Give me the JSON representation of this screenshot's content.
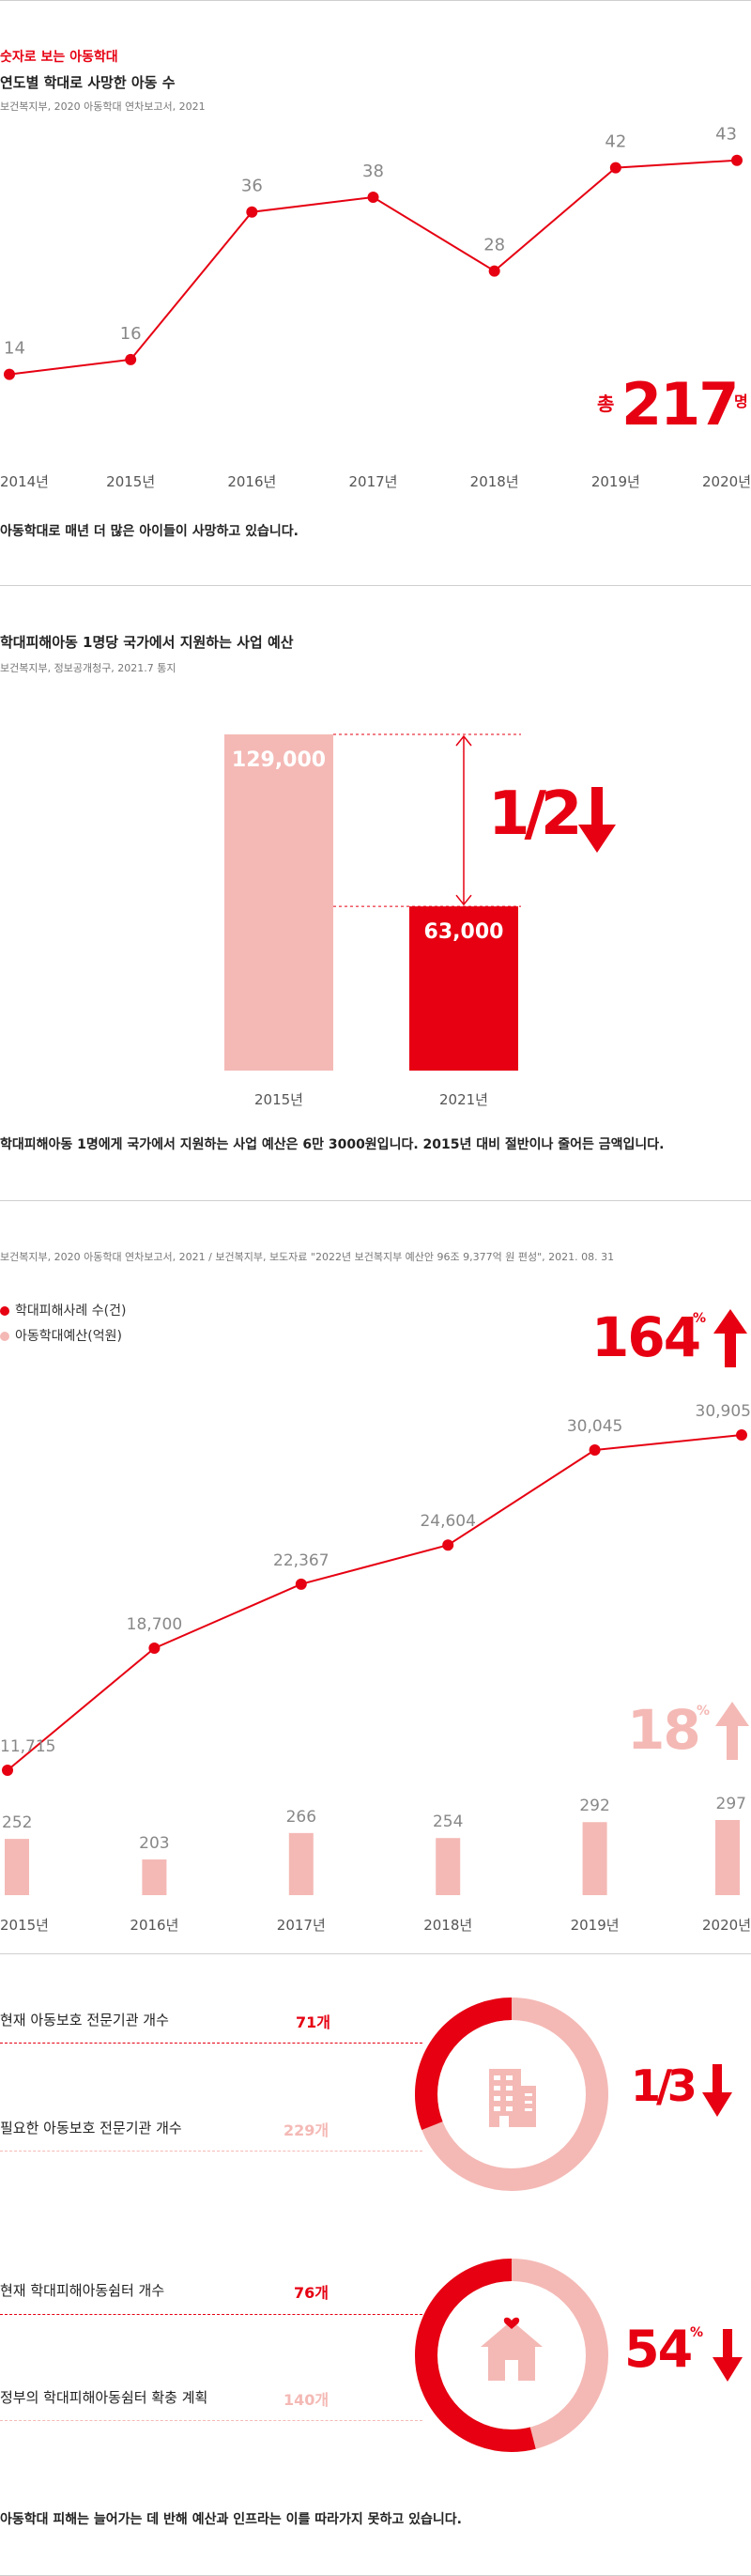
{
  "colors": {
    "accent": "#e60012",
    "light": "#f4b9b5",
    "grid": "#e6e6e6",
    "text": "#888888"
  },
  "section1": {
    "label": "숫자로 보는 아동학대",
    "title": "연도별 학대로 사망한 아동 수",
    "source": "보건복지부, 2020 아동학대 연차보고서, 2021",
    "total_prefix": "총",
    "total_value": "217",
    "total_unit": "명",
    "summary": "아동학대로 매년 더 많은 아이들이 사망하고 있습니다."
  },
  "section2": {
    "title": "학대피해아동 1명당 국가에서 지원하는 사업 예산",
    "source": "보건복지부, 정보공개청구, 2021.7 통지",
    "ratio": "1/2",
    "summary": "학대피해아동 1명에게 국가에서 지원하는 사업 예산은 6만 3000원입니다. 2015년 대비 절반이나 줄어든 금액입니다."
  },
  "section3": {
    "source": "보건복지부, 2020 아동학대 연차보고서, 2021 / 보건복지부, 보도자료 \"2022년 보건복지부 예산안 96조 9,377억 원 편성\", 2021. 08. 31",
    "legend_cases": "학대피해사례 수(건)",
    "legend_budget": "아동학대예산(억원)",
    "cases_increase": "164",
    "budget_increase": "18",
    "percent": "%"
  },
  "section4": {
    "gauge1": {
      "row1_label": "현재 아동보호 전문기관 개수",
      "row1_value": "71개",
      "row2_label": "필요한 아동보호 전문기관 개수",
      "row2_value": "229개",
      "ratio": "1/3",
      "fraction": 0.31,
      "icon": "building-icon"
    },
    "gauge2": {
      "row1_label": "현재 학대피해아동쉼터 개수",
      "row1_value": "76개",
      "row2_label": "정부의 학대피해아동쉼터 확충 계획",
      "row2_value": "140개",
      "ratio_value": "54",
      "percent": "%",
      "fraction": 0.54,
      "icon": "house-heart-icon"
    },
    "summary": "아동학대 피해는 늘어가는 데 반해 예산과 인프라는 이를 따라가지 못하고 있습니다."
  },
  "chart_data": [
    {
      "type": "line",
      "title": "연도별 학대로 사망한 아동 수",
      "x": [
        "2014년",
        "2015년",
        "2016년",
        "2017년",
        "2018년",
        "2019년",
        "2020년"
      ],
      "series": [
        {
          "values": [
            14,
            16,
            36,
            38,
            28,
            42,
            43
          ]
        }
      ],
      "ylim": [
        10,
        45
      ],
      "grid": false
    },
    {
      "type": "bar",
      "title": "학대피해아동 1명당 국가에서 지원하는 사업 예산",
      "categories": [
        "2015년",
        "2021년"
      ],
      "values": [
        129000,
        63000
      ],
      "value_labels": [
        "129,000",
        "63,000"
      ],
      "ylim": [
        0,
        129000
      ]
    },
    {
      "type": "line",
      "x": [
        "2015년",
        "2016년",
        "2017년",
        "2018년",
        "2019년",
        "2020년"
      ],
      "series": [
        {
          "name": "학대피해사례 수(건)",
          "type": "line",
          "values": [
            11715,
            18700,
            22367,
            24604,
            30045,
            30905
          ],
          "labels": [
            "11,715",
            "18,700",
            "22,367",
            "24,604",
            "30,045",
            "30,905"
          ]
        },
        {
          "name": "아동학대예산(억원)",
          "type": "bar",
          "values": [
            252,
            203,
            266,
            254,
            292,
            297
          ],
          "labels": [
            "252",
            "203",
            "266",
            "254",
            "292",
            "297"
          ]
        }
      ],
      "legend": "top-left"
    }
  ]
}
